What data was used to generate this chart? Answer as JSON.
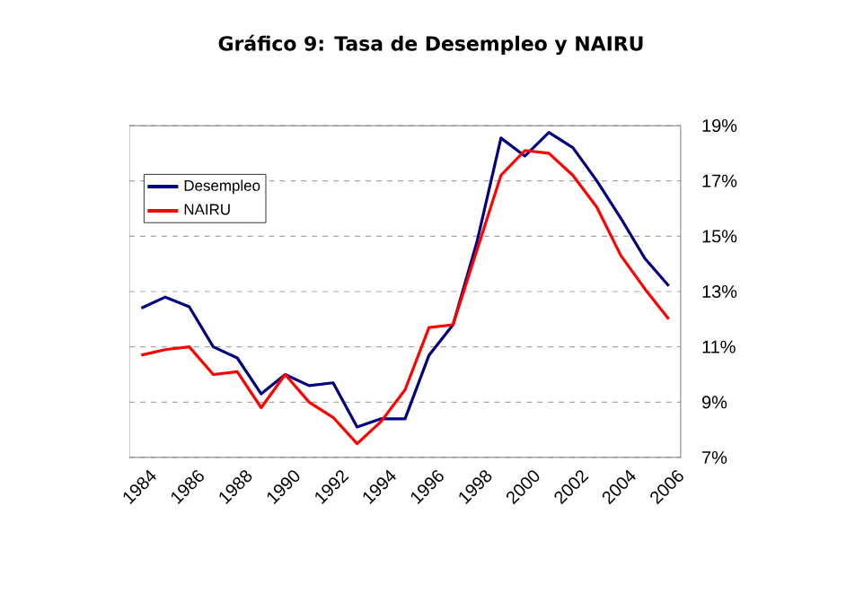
{
  "chart_data": {
    "type": "line",
    "title": "Gráfico 9: Tasa de Desempleo y NAIRU",
    "x": [
      1984,
      1985,
      1986,
      1987,
      1988,
      1989,
      1990,
      1991,
      1992,
      1993,
      1994,
      1995,
      1996,
      1997,
      1998,
      1999,
      2000,
      2001,
      2002,
      2003,
      2004,
      2005,
      2006
    ],
    "series": [
      {
        "name": "Desempleo",
        "color": "#000080",
        "values": [
          12.4,
          12.8,
          12.45,
          11.0,
          10.6,
          9.3,
          10.0,
          9.6,
          9.7,
          8.1,
          8.4,
          8.4,
          10.7,
          11.8,
          14.8,
          18.55,
          17.9,
          18.75,
          18.2,
          17.0,
          15.65,
          14.2,
          13.2
        ]
      },
      {
        "name": "NAIRU",
        "color": "#ff0000",
        "values": [
          10.7,
          10.9,
          11.0,
          10.0,
          10.1,
          8.8,
          10.0,
          9.0,
          8.45,
          7.5,
          8.3,
          9.45,
          11.7,
          11.8,
          14.5,
          17.2,
          18.1,
          18.0,
          17.2,
          16.05,
          14.3,
          13.1,
          12.0
        ]
      }
    ],
    "xlim": [
      1983.5,
      2006.5
    ],
    "xticks": [
      1984,
      1986,
      1988,
      1990,
      1992,
      1994,
      1996,
      1998,
      2000,
      2002,
      2004,
      2006
    ],
    "ylim": [
      7,
      19
    ],
    "yticks": [
      {
        "value": 7,
        "label": "7%"
      },
      {
        "value": 9,
        "label": "9%"
      },
      {
        "value": 11,
        "label": "11%"
      },
      {
        "value": 13,
        "label": "13%"
      },
      {
        "value": 15,
        "label": "15%"
      },
      {
        "value": 17,
        "label": "17%"
      },
      {
        "value": 19,
        "label": "19%"
      }
    ],
    "grid": "y",
    "legend": "top left",
    "marker": "none",
    "line_style": "solid"
  }
}
